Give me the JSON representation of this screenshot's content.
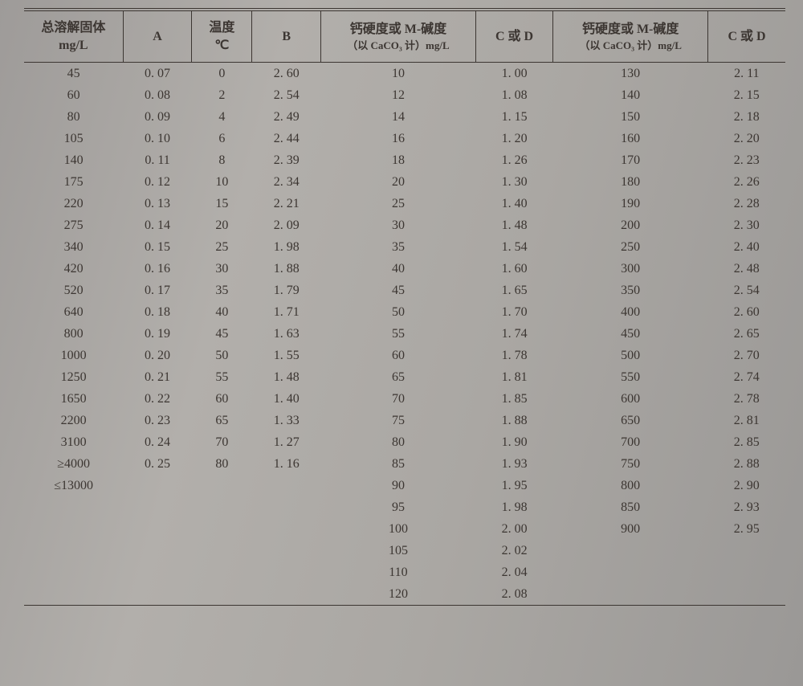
{
  "table": {
    "type": "table",
    "background_color": "#a9a6a4",
    "text_color": "#3c3632",
    "border_color": "#3c3632",
    "font_family": "SimSun, serif",
    "header_fontsize": 16,
    "body_fontsize": 16,
    "columns": [
      {
        "key": "tds",
        "line1": "总溶解固体",
        "line2": "mg/L",
        "width_pct": 11.5,
        "align": "center"
      },
      {
        "key": "A",
        "line1": "A",
        "line2": "",
        "width_pct": 8,
        "align": "center"
      },
      {
        "key": "temp",
        "line1": "温度",
        "line2": "℃",
        "width_pct": 7,
        "align": "center"
      },
      {
        "key": "B",
        "line1": "B",
        "line2": "",
        "width_pct": 8,
        "align": "center"
      },
      {
        "key": "cacd1",
        "line1": "钙硬度或 M-碱度",
        "line2": "（以 CaCO₃ 计）mg/L",
        "width_pct": 18,
        "align": "center"
      },
      {
        "key": "CD1",
        "line1": "C 或 D",
        "line2": "",
        "width_pct": 9,
        "align": "center"
      },
      {
        "key": "cacd2",
        "line1": "钙硬度或 M-碱度",
        "line2": "（以 CaCO₃ 计）mg/L",
        "width_pct": 18,
        "align": "center"
      },
      {
        "key": "CD2",
        "line1": "C 或 D",
        "line2": "",
        "width_pct": 9,
        "align": "center"
      }
    ],
    "rows": [
      [
        "45",
        "0. 07",
        "0",
        "2. 60",
        "10",
        "1. 00",
        "130",
        "2. 11"
      ],
      [
        "60",
        "0. 08",
        "2",
        "2. 54",
        "12",
        "1. 08",
        "140",
        "2. 15"
      ],
      [
        "80",
        "0. 09",
        "4",
        "2. 49",
        "14",
        "1. 15",
        "150",
        "2. 18"
      ],
      [
        "105",
        "0. 10",
        "6",
        "2. 44",
        "16",
        "1. 20",
        "160",
        "2. 20"
      ],
      [
        "140",
        "0. 11",
        "8",
        "2. 39",
        "18",
        "1. 26",
        "170",
        "2. 23"
      ],
      [
        "175",
        "0. 12",
        "10",
        "2. 34",
        "20",
        "1. 30",
        "180",
        "2. 26"
      ],
      [
        "220",
        "0. 13",
        "15",
        "2. 21",
        "25",
        "1. 40",
        "190",
        "2. 28"
      ],
      [
        "275",
        "0. 14",
        "20",
        "2. 09",
        "30",
        "1. 48",
        "200",
        "2. 30"
      ],
      [
        "340",
        "0. 15",
        "25",
        "1. 98",
        "35",
        "1. 54",
        "250",
        "2. 40"
      ],
      [
        "420",
        "0. 16",
        "30",
        "1. 88",
        "40",
        "1. 60",
        "300",
        "2. 48"
      ],
      [
        "520",
        "0. 17",
        "35",
        "1. 79",
        "45",
        "1. 65",
        "350",
        "2. 54"
      ],
      [
        "640",
        "0. 18",
        "40",
        "1. 71",
        "50",
        "1. 70",
        "400",
        "2. 60"
      ],
      [
        "800",
        "0. 19",
        "45",
        "1. 63",
        "55",
        "1. 74",
        "450",
        "2. 65"
      ],
      [
        "1000",
        "0. 20",
        "50",
        "1. 55",
        "60",
        "1. 78",
        "500",
        "2. 70"
      ],
      [
        "1250",
        "0. 21",
        "55",
        "1. 48",
        "65",
        "1. 81",
        "550",
        "2. 74"
      ],
      [
        "1650",
        "0. 22",
        "60",
        "1. 40",
        "70",
        "1. 85",
        "600",
        "2. 78"
      ],
      [
        "2200",
        "0. 23",
        "65",
        "1. 33",
        "75",
        "1. 88",
        "650",
        "2. 81"
      ],
      [
        "3100",
        "0. 24",
        "70",
        "1. 27",
        "80",
        "1. 90",
        "700",
        "2. 85"
      ],
      [
        "≥4000",
        "0. 25",
        "80",
        "1. 16",
        "85",
        "1. 93",
        "750",
        "2. 88"
      ],
      [
        "≤13000",
        "",
        "",
        "",
        "90",
        "1. 95",
        "800",
        "2. 90"
      ],
      [
        "",
        "",
        "",
        "",
        "95",
        "1. 98",
        "850",
        "2. 93"
      ],
      [
        "",
        "",
        "",
        "",
        "100",
        "2. 00",
        "900",
        "2. 95"
      ],
      [
        "",
        "",
        "",
        "",
        "105",
        "2. 02",
        "",
        ""
      ],
      [
        "",
        "",
        "",
        "",
        "110",
        "2. 04",
        "",
        ""
      ],
      [
        "",
        "",
        "",
        "",
        "120",
        "2. 08",
        "",
        ""
      ]
    ]
  }
}
